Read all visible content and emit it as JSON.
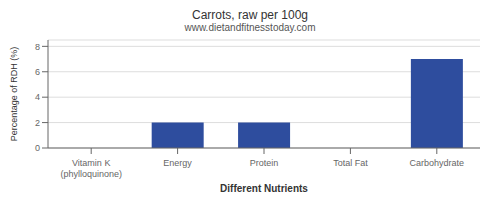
{
  "chart_data": {
    "type": "bar",
    "title": "Carrots, raw per 100g",
    "subtitle": "www.dietandfitnesstoday.com",
    "xlabel": "Different Nutrients",
    "ylabel": "Percentage of RDH (%)",
    "categories": [
      "Vitamin K (phylloquinone)",
      "Energy",
      "Protein",
      "Total Fat",
      "Carbohydrate"
    ],
    "values": [
      0,
      2,
      2,
      0,
      7
    ],
    "color": "#2e4d9e",
    "ylim": [
      0,
      8.5
    ],
    "yticks": [
      0,
      2,
      4,
      6,
      8
    ],
    "grid": true
  }
}
